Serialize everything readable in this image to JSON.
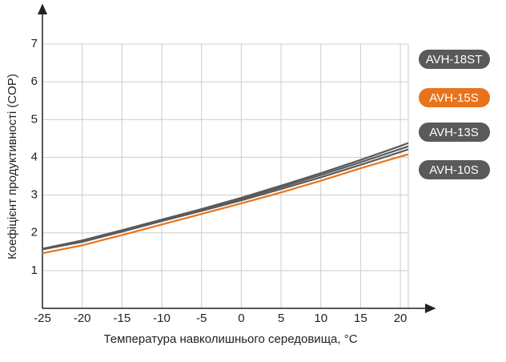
{
  "chart_data": {
    "type": "line",
    "x_label": "Температура навколишнього середовища, °C",
    "y_label": "Коефіцієнт продуктивності (COP)",
    "x": [
      -25,
      -20,
      -15,
      -10,
      -5,
      0,
      5,
      10,
      15,
      20,
      21
    ],
    "series": [
      {
        "name": "AVH-18ST",
        "color": "#5a5a5a",
        "values": [
          1.58,
          1.8,
          2.07,
          2.35,
          2.63,
          2.93,
          3.25,
          3.58,
          3.93,
          4.3,
          4.38
        ]
      },
      {
        "name": "AVH-15S",
        "color": "#e8731c",
        "values": [
          1.46,
          1.67,
          1.94,
          2.22,
          2.5,
          2.78,
          3.07,
          3.38,
          3.71,
          4.02,
          4.08
        ]
      },
      {
        "name": "AVH-13S",
        "color": "#5a5a5a",
        "values": [
          1.57,
          1.78,
          2.05,
          2.33,
          2.61,
          2.9,
          3.21,
          3.53,
          3.87,
          4.22,
          4.29
        ]
      },
      {
        "name": "AVH-10S",
        "color": "#5a5a5a",
        "values": [
          1.56,
          1.76,
          2.03,
          2.31,
          2.58,
          2.86,
          3.16,
          3.47,
          3.8,
          4.14,
          4.21
        ]
      }
    ],
    "xlim": [
      -25,
      21
    ],
    "ylim": [
      0,
      7
    ],
    "xticks": [
      -25,
      -20,
      -15,
      -10,
      -5,
      0,
      5,
      10,
      15,
      20
    ],
    "yticks": [
      1,
      2,
      3,
      4,
      5,
      6,
      7
    ],
    "grid": true
  }
}
